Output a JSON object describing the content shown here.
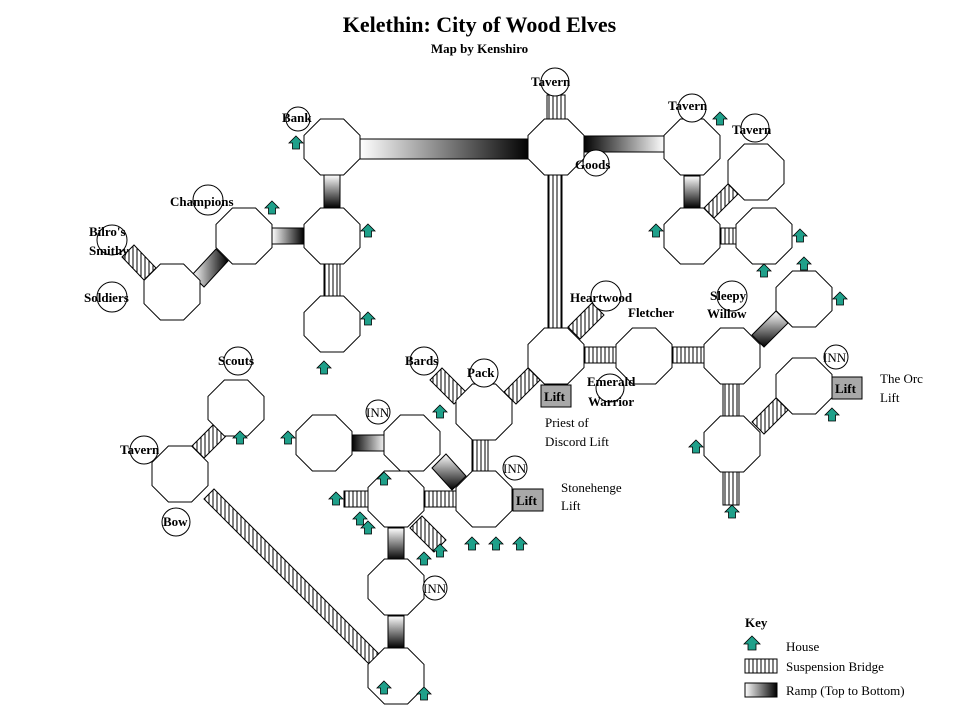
{
  "title": "Kelethin: City of Wood Elves",
  "subtitle": "Map by Kenshiro",
  "labels": {
    "tavern_top": "Tavern",
    "bank": "Bank",
    "tavern_ne": "Tavern",
    "tavern_ne2": "Tavern",
    "goods": "Goods",
    "champions": "Champions",
    "bilros_1": "Bilro's",
    "bilros_2": "Smithy",
    "soldiers": "Soldiers",
    "heartwood": "Heartwood",
    "fletcher": "Fletcher",
    "sleepy_1": "Sleepy",
    "sleepy_2": "Willow",
    "scouts": "Scouts",
    "bards": "Bards",
    "pack": "Pack",
    "emerald_1": "Emerald",
    "emerald_2": "Warrior",
    "inn_center": "INN",
    "inn_right": "INN",
    "inn_mid": "INN",
    "inn_low": "INN",
    "tavern_w": "Tavern",
    "bow": "Bow",
    "priest_1": "Priest of",
    "priest_2": "Discord Lift",
    "stone_1": "Stonehenge",
    "stone_2": "Lift",
    "orc_1": "The Orc",
    "orc_2": "Lift",
    "lift_a": "Lift",
    "lift_b": "Lift",
    "lift_c": "Lift"
  },
  "key": {
    "heading": "Key",
    "house": "House",
    "bridge": "Suspension Bridge",
    "ramp": "Ramp (Top to Bottom)"
  },
  "colors": {
    "house": "#1fa08a",
    "lift": "#a8a8a8"
  }
}
